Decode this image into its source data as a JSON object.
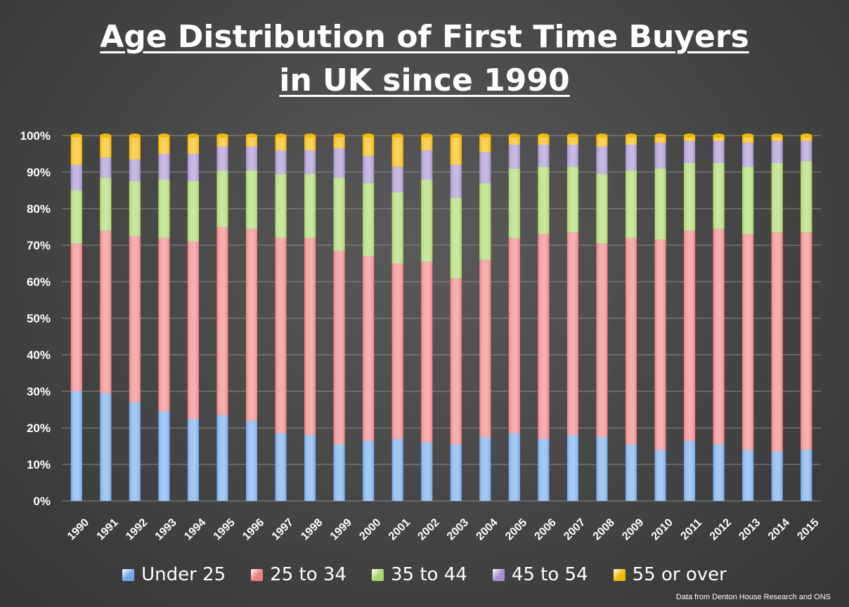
{
  "chart_data": {
    "type": "bar",
    "stacked": true,
    "title_line1": "Age Distribution of First Time Buyers",
    "title_line2": "in UK since 1990",
    "source": "Data from Denton House Research and ONS",
    "ylim": [
      0,
      100
    ],
    "y_ticks": [
      "0%",
      "10%",
      "20%",
      "30%",
      "40%",
      "50%",
      "60%",
      "70%",
      "80%",
      "90%",
      "100%"
    ],
    "categories": [
      "1990",
      "1991",
      "1992",
      "1993",
      "1994",
      "1995",
      "1996",
      "1997",
      "1998",
      "1999",
      "2000",
      "2001",
      "2002",
      "2003",
      "2004",
      "2005",
      "2006",
      "2007",
      "2008",
      "2009",
      "2010",
      "2011",
      "2012",
      "2013",
      "2014",
      "2015"
    ],
    "series": [
      {
        "name": "Under 25",
        "color": "#6fa8e8",
        "values": [
          30,
          29.5,
          27,
          24.5,
          22.5,
          23.5,
          22,
          18.5,
          18,
          15.5,
          16.5,
          17,
          16,
          15.5,
          17.5,
          18.5,
          17,
          18,
          17.5,
          15.5,
          14,
          16.5,
          15.5,
          14,
          13.5,
          14
        ]
      },
      {
        "name": "25 to 34",
        "color": "#f07f7f",
        "values": [
          40.5,
          44.5,
          45.5,
          47.5,
          48.5,
          51.5,
          52.5,
          53.5,
          54,
          53,
          50.5,
          48,
          49.5,
          45.5,
          48.5,
          53.5,
          56,
          55.5,
          53,
          56.5,
          57.5,
          57.5,
          59,
          59,
          60,
          59.5
        ]
      },
      {
        "name": "35 to 44",
        "color": "#a8d868",
        "values": [
          14.5,
          14.5,
          15,
          16,
          16.5,
          15.5,
          16,
          17.5,
          17.5,
          20,
          20,
          19.5,
          22.5,
          22,
          21,
          19,
          18.5,
          18,
          19,
          18.5,
          19.5,
          18.5,
          18,
          18.5,
          19,
          19.5
        ]
      },
      {
        "name": "45 to 54",
        "color": "#a68fd0",
        "values": [
          7,
          5.5,
          6,
          7,
          7.5,
          6.5,
          6.5,
          6.5,
          6.5,
          8,
          7.5,
          7,
          8,
          9,
          8.5,
          6.5,
          6,
          6,
          7.5,
          7,
          7,
          6,
          6,
          6.5,
          6,
          5.5
        ]
      },
      {
        "name": "55 or over",
        "color": "#f5b800",
        "values": [
          8,
          6,
          6.5,
          5,
          5,
          3,
          3,
          4,
          4,
          3.5,
          5.5,
          8.5,
          4,
          8,
          4.5,
          2.5,
          2.5,
          2.5,
          3,
          2.5,
          2,
          1.5,
          1.5,
          2,
          1.5,
          1.5
        ]
      }
    ]
  }
}
